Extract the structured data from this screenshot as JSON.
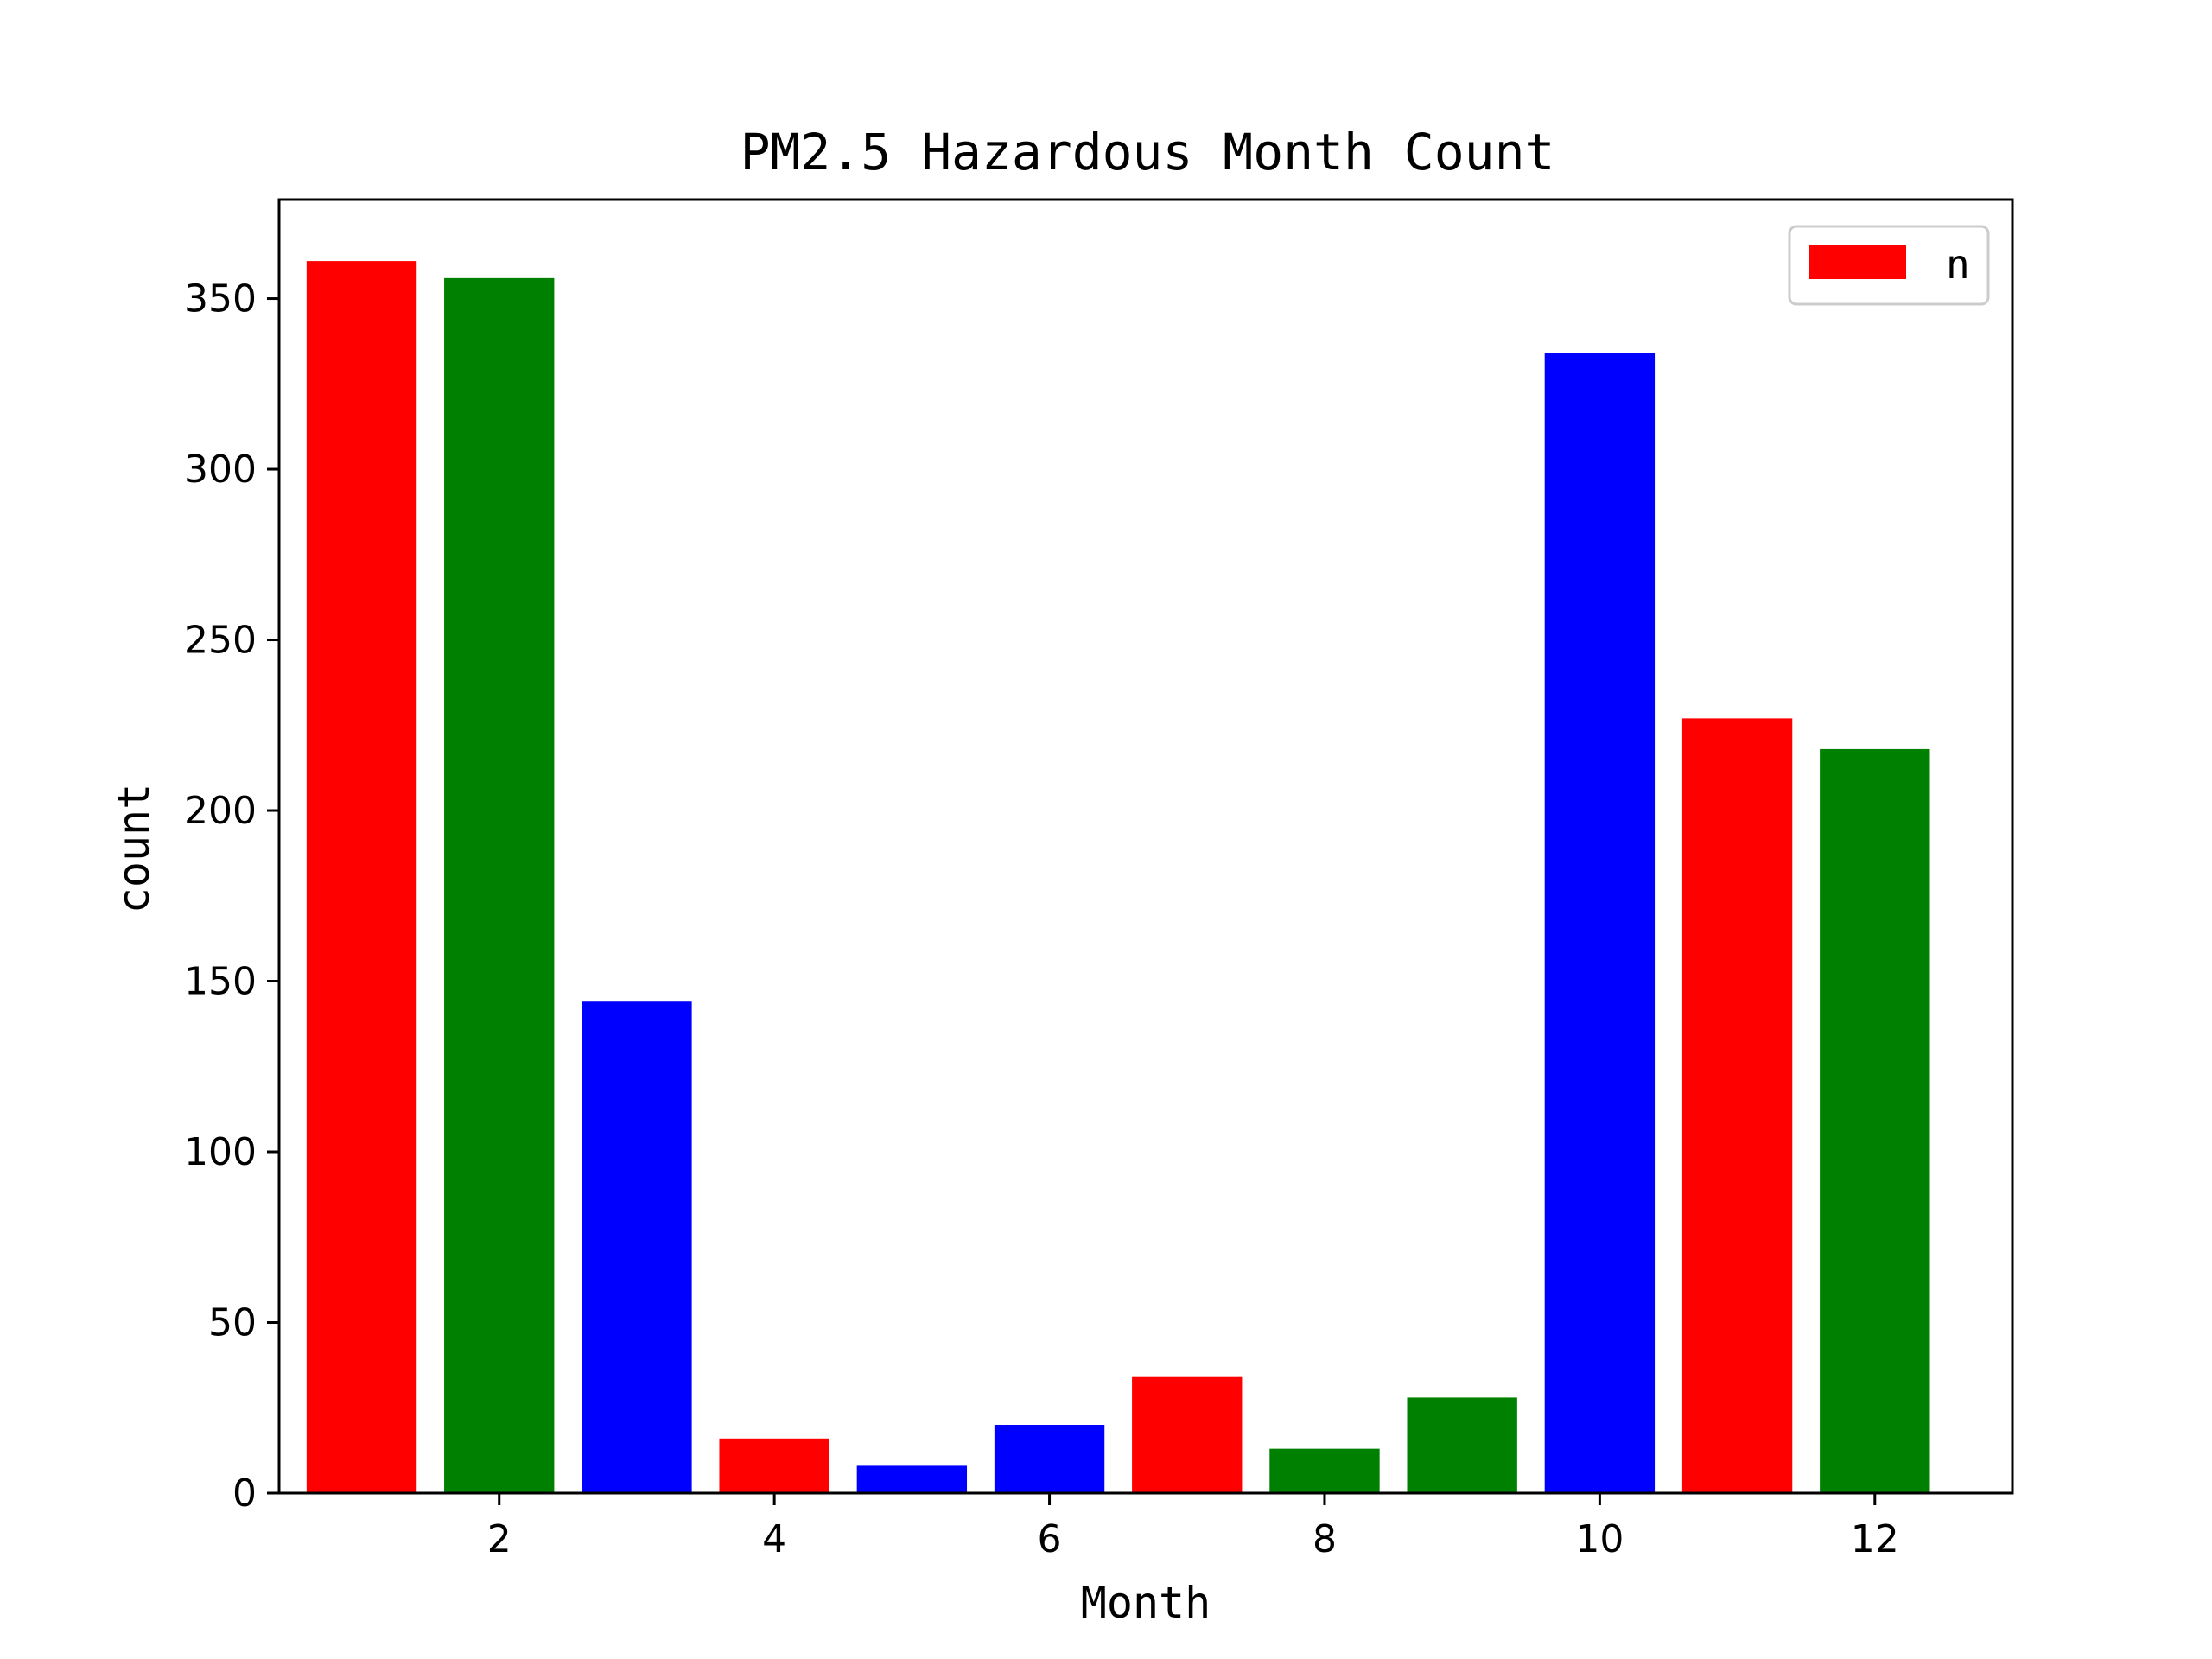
{
  "chart_data": {
    "type": "bar",
    "title": "PM2.5 Hazardous Month Count",
    "xlabel": "Month",
    "ylabel": "count",
    "x": [
      1,
      2,
      3,
      4,
      5,
      6,
      7,
      8,
      9,
      10,
      11,
      12
    ],
    "values": [
      361,
      356,
      144,
      16,
      8,
      20,
      34,
      13,
      28,
      334,
      227,
      218
    ],
    "bar_colors": [
      "#ff0000",
      "#008000",
      "#0000ff",
      "#ff0000",
      "#0000ff",
      "#0000ff",
      "#ff0000",
      "#008000",
      "#008000",
      "#0000ff",
      "#ff0000",
      "#008000"
    ],
    "xticks": [
      "2",
      "4",
      "6",
      "8",
      "10",
      "12"
    ],
    "yticks": [
      "0",
      "50",
      "100",
      "150",
      "200",
      "250",
      "300",
      "350"
    ],
    "xlim": [
      0.4,
      13.0
    ],
    "ylim": [
      0,
      379
    ],
    "legend": {
      "label": "n",
      "color": "#ff0000",
      "position": "upper right"
    }
  }
}
